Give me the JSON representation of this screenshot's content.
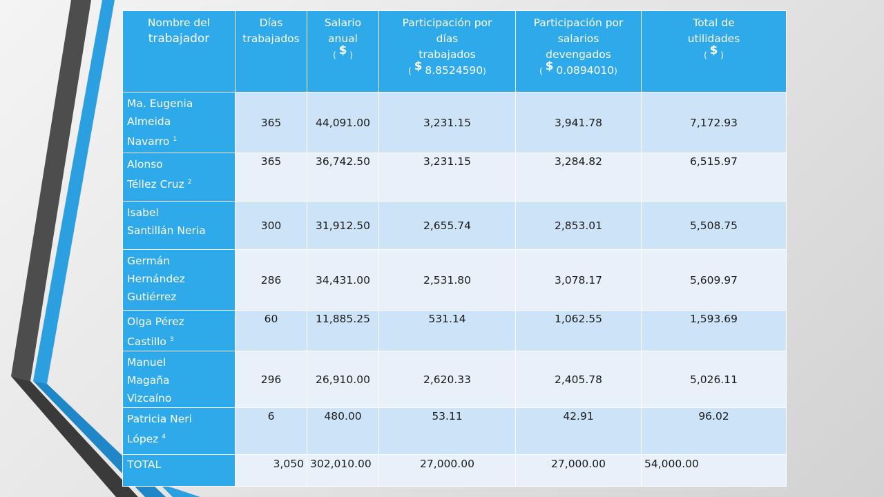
{
  "header": {
    "col1_line1": "Nombre del",
    "col1_line2": "trabajador",
    "col2_line1": "Días",
    "col2_line2": "trabajados",
    "col3_line1": "Salario anual",
    "col3_currency": "$",
    "col4_line1": "Participación por",
    "col4_line2": "días",
    "col4_line3": "trabajados",
    "col4_currency": "$",
    "col4_factor": "8.8524590",
    "col5_line1": "Participación por",
    "col5_line2": "salarios",
    "col5_line3": "devengados",
    "col5_currency": "$",
    "col5_factor": "0.0894010",
    "col6_line1": "Total de",
    "col6_line2": "utilidades",
    "col6_currency": "$"
  },
  "rows": [
    {
      "name_lines": [
        "Ma. Eugenia",
        "Almeida",
        "Navarro"
      ],
      "note": "1",
      "dias": "365",
      "salario": "44,091.00",
      "part_dias": "3,231.15",
      "part_salarios": "3,941.78",
      "total": "7,172.93"
    },
    {
      "name_lines": [
        "Alonso",
        "Téllez Cruz"
      ],
      "note": "2",
      "dias": "365",
      "salario": "36,742.50",
      "part_dias": "3,231.15",
      "part_salarios": "3,284.82",
      "total": "6,515.97"
    },
    {
      "name_lines": [
        "Isabel",
        "Santillán Neria"
      ],
      "note": "",
      "dias": "300",
      "salario": "31,912.50",
      "part_dias": "2,655.74",
      "part_salarios": "2,853.01",
      "total": "5,508.75"
    },
    {
      "name_lines": [
        "Germán",
        "Hernández",
        "Gutiérrez"
      ],
      "note": "",
      "dias": "286",
      "salario": "34,431.00",
      "part_dias": "2,531.80",
      "part_salarios": "3,078.17",
      "total": "5,609.97"
    },
    {
      "name_lines": [
        "Olga Pérez",
        "Castillo"
      ],
      "note": "3",
      "dias": "60",
      "salario": "11,885.25",
      "part_dias": "531.14",
      "part_salarios": "1,062.55",
      "total": "1,593.69"
    },
    {
      "name_lines": [
        "Manuel",
        "Magaña",
        "Vizcaíno"
      ],
      "note": "",
      "dias": "296",
      "salario": "26,910.00",
      "part_dias": "2,620.33",
      "part_salarios": "2,405.78",
      "total": "5,026.11"
    },
    {
      "name_lines": [
        "Patricia Neri",
        "López"
      ],
      "note": "4",
      "dias": "6",
      "salario": "480.00",
      "part_dias": "53.11",
      "part_salarios": "42.91",
      "total": "96.02"
    }
  ],
  "total_row": {
    "label": "TOTAL",
    "dias": "3,050",
    "salario": "302,010.00",
    "part_dias": "27,000.00",
    "part_salarios": "27,000.00",
    "total": "54,000.00"
  },
  "colors": {
    "header_blue": "#2ea9ea",
    "row_light_blue": "#cde3f7",
    "row_pale": "#e8f0fa",
    "deco_dark": "#4a4a4a",
    "deco_blue": "#2b9fe0"
  }
}
